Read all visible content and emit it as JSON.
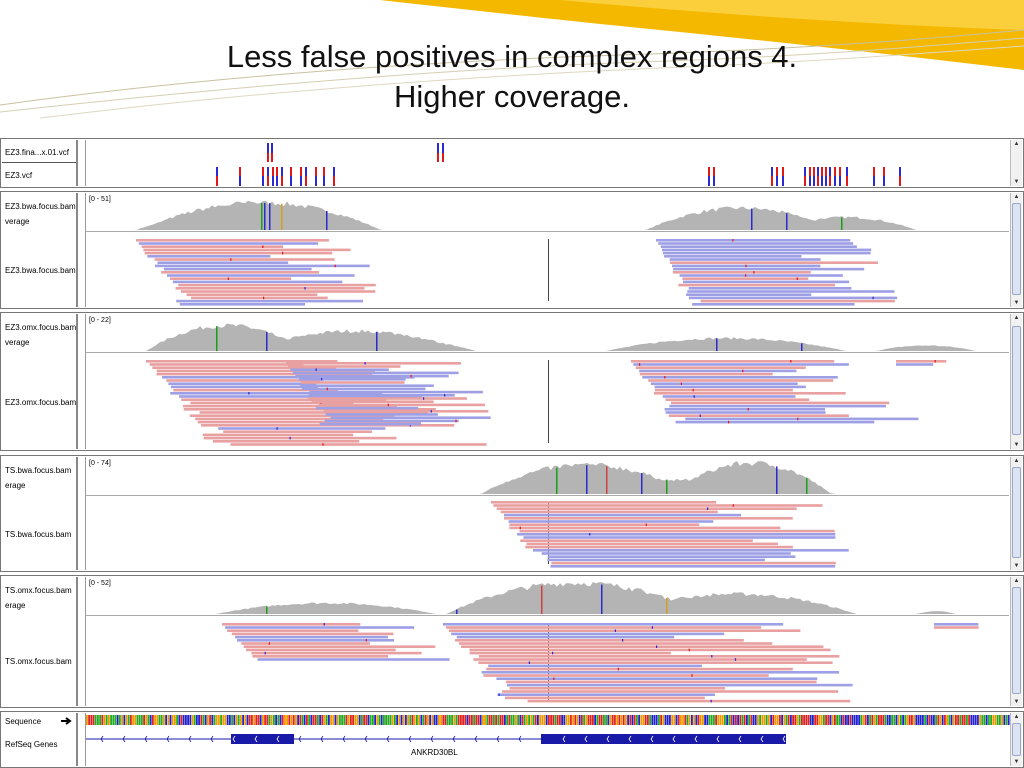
{
  "slide": {
    "title_line1": "Less false positives in complex regions 4.",
    "title_line2": "Higher coverage."
  },
  "colors": {
    "fwd_read": "#e8a0a0",
    "rev_read": "#9ea0e6",
    "coverage": "#b4b4b4",
    "variant_red": "#e01818",
    "variant_blue": "#2a2ad0",
    "gene": "#1a1aa8",
    "banner": "#f3b300"
  },
  "tracks": {
    "vcf1": {
      "name": "EZ3.fina...x.01.vcf"
    },
    "vcf2": {
      "name": "EZ3.vcf"
    }
  },
  "panels": [
    {
      "key": "ez3bwa",
      "cov_name": "EZ3.bwa.focus.bam verage",
      "reads_name": "EZ3.bwa.focus.bam",
      "range": "[0 - 51]"
    },
    {
      "key": "ez3omx",
      "cov_name": "EZ3.omx.focus.bam verage",
      "reads_name": "EZ3.omx.focus.bam",
      "range": "[0 - 22]"
    },
    {
      "key": "tsbwa",
      "cov_name": "TS.bwa.focus.bam erage",
      "reads_name": "TS.bwa.focus.bam",
      "range": "[0 - 74]"
    },
    {
      "key": "tsomx",
      "cov_name": "TS.omx.focus.bam erage",
      "reads_name": "TS.omx.focus.bam",
      "range": "[0 - 52]"
    }
  ],
  "bottom": {
    "sequence_label": "Sequence",
    "refseq_label": "RefSeq Genes",
    "gene_name": "ANKRD30BL",
    "strand_icon": "arrow-right-icon"
  },
  "icons": {
    "scroll_up": "▲",
    "scroll_down": "▼"
  }
}
